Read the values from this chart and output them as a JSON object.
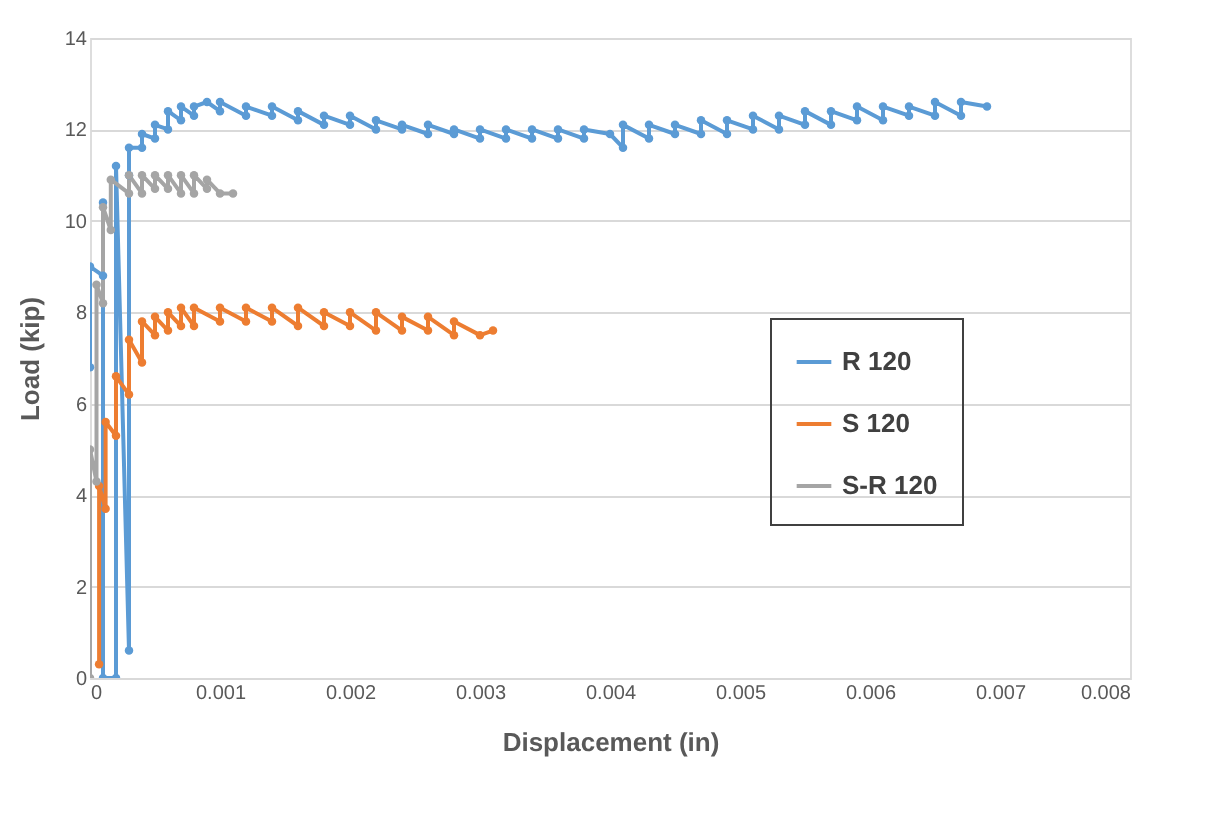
{
  "chart_data": {
    "type": "line",
    "xlabel": "Displacement (in)",
    "ylabel": "Load (kip)",
    "xlim": [
      0,
      0.008
    ],
    "xticks": [
      {
        "value": 0,
        "label": "0"
      },
      0.001,
      0.002,
      0.003,
      0.004,
      0.005,
      0.006,
      0.007,
      0.008
    ],
    "ylim": [
      0,
      14
    ],
    "yticks": [
      0,
      2,
      4,
      6,
      8,
      10,
      12,
      14
    ],
    "grid": "y",
    "legend": "right",
    "marker": "circle",
    "line_style": "solid",
    "series": [
      {
        "name": "R 120",
        "color": "#5b9bd5",
        "x": [
          0,
          0,
          0.0001,
          0.0001,
          0.0001,
          0.0002,
          0.0002,
          0.0003,
          0.0003,
          0.0003,
          0.0004,
          0.0004,
          0.0005,
          0.0005,
          0.0006,
          0.0006,
          0.0007,
          0.0007,
          0.0008,
          0.0008,
          0.0009,
          0.001,
          0.001,
          0.0012,
          0.0012,
          0.0014,
          0.0014,
          0.0016,
          0.0016,
          0.0018,
          0.0018,
          0.002,
          0.002,
          0.0022,
          0.0022,
          0.0024,
          0.0024,
          0.0026,
          0.0026,
          0.0028,
          0.0028,
          0.003,
          0.003,
          0.0032,
          0.0032,
          0.0034,
          0.0034,
          0.0036,
          0.0036,
          0.0038,
          0.0038,
          0.004,
          0.0041,
          0.0041,
          0.0043,
          0.0043,
          0.0045,
          0.0045,
          0.0047,
          0.0047,
          0.0049,
          0.0049,
          0.0051,
          0.0051,
          0.0053,
          0.0053,
          0.0055,
          0.0055,
          0.0057,
          0.0057,
          0.0059,
          0.0059,
          0.0061,
          0.0061,
          0.0063,
          0.0063,
          0.0065,
          0.0065,
          0.0067,
          0.0067,
          0.0069
        ],
        "values": [
          6.8,
          9.0,
          8.8,
          10.4,
          0,
          0,
          11.2,
          0.6,
          11.0,
          11.6,
          11.6,
          11.9,
          11.8,
          12.1,
          12.0,
          12.4,
          12.2,
          12.5,
          12.3,
          12.5,
          12.6,
          12.4,
          12.6,
          12.3,
          12.5,
          12.3,
          12.5,
          12.2,
          12.4,
          12.1,
          12.3,
          12.1,
          12.3,
          12.0,
          12.2,
          12.0,
          12.1,
          11.9,
          12.1,
          11.9,
          12.0,
          11.8,
          12.0,
          11.8,
          12.0,
          11.8,
          12.0,
          11.8,
          12.0,
          11.8,
          12.0,
          11.9,
          11.6,
          12.1,
          11.8,
          12.1,
          11.9,
          12.1,
          11.9,
          12.2,
          11.9,
          12.2,
          12.0,
          12.3,
          12.0,
          12.3,
          12.1,
          12.4,
          12.1,
          12.4,
          12.2,
          12.5,
          12.2,
          12.5,
          12.3,
          12.5,
          12.3,
          12.6,
          12.3,
          12.6,
          12.5
        ]
      },
      {
        "name": "S 120",
        "color": "#ed7d31",
        "x": [
          7e-05,
          7e-05,
          0.00012,
          0.00012,
          0.0002,
          0.0002,
          0.0003,
          0.0003,
          0.0004,
          0.0004,
          0.0005,
          0.0005,
          0.0006,
          0.0006,
          0.0007,
          0.0007,
          0.0008,
          0.0008,
          0.001,
          0.001,
          0.0012,
          0.0012,
          0.0014,
          0.0014,
          0.0016,
          0.0016,
          0.0018,
          0.0018,
          0.002,
          0.002,
          0.0022,
          0.0022,
          0.0024,
          0.0024,
          0.0026,
          0.0026,
          0.0028,
          0.0028,
          0.003,
          0.0031
        ],
        "values": [
          0.3,
          4.2,
          3.7,
          5.6,
          5.3,
          6.6,
          6.2,
          7.4,
          6.9,
          7.8,
          7.5,
          7.9,
          7.6,
          8.0,
          7.7,
          8.1,
          7.7,
          8.1,
          7.8,
          8.1,
          7.8,
          8.1,
          7.8,
          8.1,
          7.7,
          8.1,
          7.7,
          8.0,
          7.7,
          8.0,
          7.6,
          8.0,
          7.6,
          7.9,
          7.6,
          7.9,
          7.5,
          7.8,
          7.5,
          7.6
        ]
      },
      {
        "name": "S-R 120",
        "color": "#a5a5a5",
        "x": [
          0,
          0,
          5e-05,
          5e-05,
          0.0001,
          0.0001,
          0.00016,
          0.00016,
          0.0003,
          0.0003,
          0.0004,
          0.0004,
          0.0005,
          0.0005,
          0.0006,
          0.0006,
          0.0007,
          0.0007,
          0.0008,
          0.0008,
          0.0009,
          0.0009,
          0.001,
          0.0011
        ],
        "values": [
          0,
          5.0,
          4.3,
          8.6,
          8.2,
          10.3,
          9.8,
          10.9,
          10.6,
          11.0,
          10.6,
          11.0,
          10.7,
          11.0,
          10.7,
          11.0,
          10.6,
          11.0,
          10.6,
          11.0,
          10.7,
          10.9,
          10.6,
          10.6
        ]
      }
    ]
  }
}
